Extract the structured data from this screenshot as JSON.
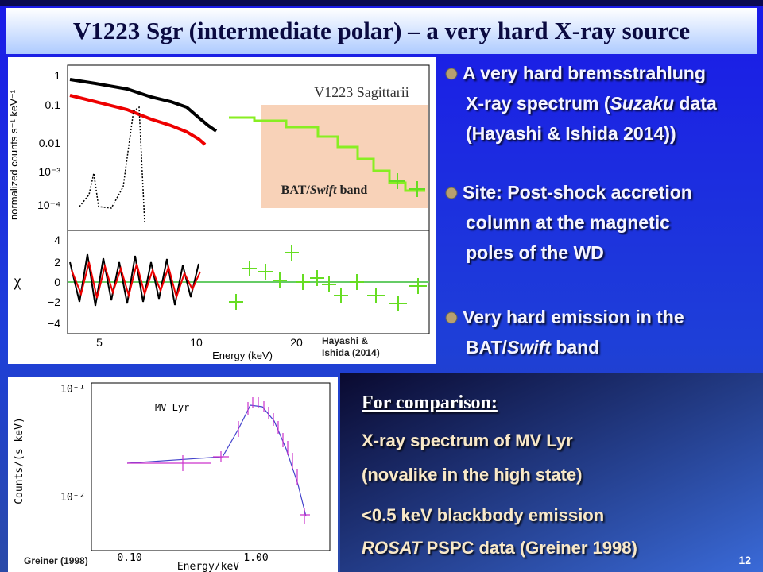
{
  "title": "V1223 Sgr (intermediate polar) – a very hard X-ray source",
  "bullets": [
    {
      "lines": [
        [
          {
            "text": "A very hard bremsstrahlung"
          }
        ],
        [
          {
            "text": "X-ray spectrum ("
          },
          {
            "text": "Suzaku",
            "italic": true
          },
          {
            "text": " data"
          }
        ],
        [
          {
            "text": "(Hayashi & Ishida 2014))"
          }
        ]
      ]
    },
    {
      "lines": [
        [
          {
            "text": "Site: Post-shock accretion"
          }
        ],
        [
          {
            "text": "column at the magnetic"
          }
        ],
        [
          {
            "text": "poles of the WD"
          }
        ]
      ]
    },
    {
      "lines": [
        [
          {
            "text": "Very hard emission in the"
          }
        ],
        [
          {
            "text": "BAT/"
          },
          {
            "text": "Swift",
            "italic": true
          },
          {
            "text": " band"
          }
        ]
      ]
    }
  ],
  "top_figure": {
    "object_label": "V1223 Sagittarii",
    "band_label": [
      {
        "text": "BAT/"
      },
      {
        "text": "Swift",
        "italic": true
      },
      {
        "text": " band"
      }
    ],
    "y_label": "normalized counts s⁻¹ keV⁻¹",
    "y_ticks": [
      "1",
      "0.1",
      "0.01",
      "10⁻³",
      "10⁻⁴"
    ],
    "chi_label": "χ",
    "chi_ticks": [
      "4",
      "2",
      "0",
      "−2",
      "−4"
    ],
    "x_ticks": [
      "5",
      "10",
      "20"
    ],
    "x_label": "Energy (keV)",
    "credit": [
      "Hayashi &",
      "Ishida (2014)"
    ]
  },
  "bottom_figure": {
    "object_label": "MV Lyr",
    "y_label": "Counts/(s keV)",
    "y_ticks": [
      "10⁻¹",
      "10⁻²"
    ],
    "x_ticks": [
      "0.10",
      "1.00"
    ],
    "x_label": "Energy/keV",
    "credit": "Greiner (1998)"
  },
  "comparison": {
    "heading": "For comparison:",
    "lines": [
      [
        {
          "text": "X-ray spectrum of MV Lyr"
        }
      ],
      [
        {
          "text": "(novalike in the high state)"
        }
      ],
      [
        {
          "text": "<0.5 keV blackbody emission"
        }
      ],
      [
        {
          "text": "ROSAT",
          "italic": true
        },
        {
          "text": " PSPC data (Greiner 1998)"
        }
      ]
    ]
  },
  "page_number": "12"
}
